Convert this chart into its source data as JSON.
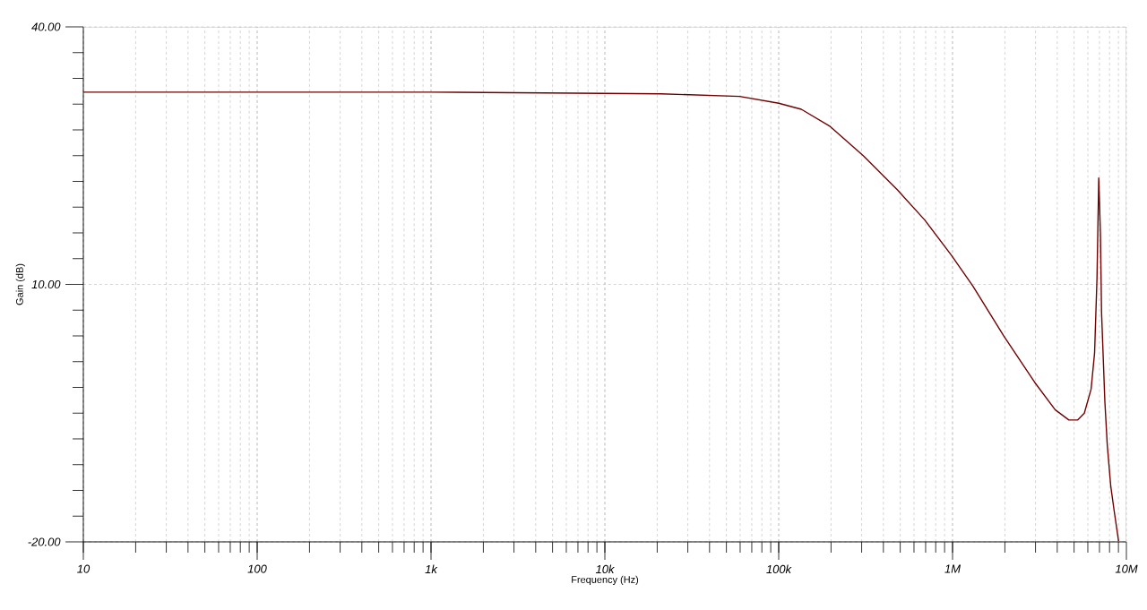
{
  "chart_data": {
    "type": "line",
    "xlabel": "Frequency (Hz)",
    "ylabel": "Gain (dB)",
    "log": "x",
    "grid": true,
    "xlim": [
      10,
      10000000
    ],
    "ylim": [
      -20,
      40
    ],
    "xticks": [
      {
        "value": 10,
        "label": "10"
      },
      {
        "value": 100,
        "label": "100"
      },
      {
        "value": 1000,
        "label": "1k"
      },
      {
        "value": 10000,
        "label": "10k"
      },
      {
        "value": 100000,
        "label": "100k"
      },
      {
        "value": 1000000,
        "label": "1M"
      },
      {
        "value": 10000000,
        "label": "10M"
      }
    ],
    "yticks": [
      {
        "value": -20,
        "label": "-20.00"
      },
      {
        "value": 10,
        "label": "10.00"
      },
      {
        "value": 40,
        "label": "40.00"
      }
    ],
    "series": [
      {
        "color": "#700000",
        "x": [
          10,
          1000,
          21000,
          59600,
          100000,
          134900,
          197700,
          306200,
          482000,
          692000,
          984000,
          1309000,
          1968000,
          2965000,
          3890000,
          4667000,
          5236000,
          5728000,
          6266000,
          6561000,
          6776000,
          6934000,
          7096000,
          7194000,
          7516000,
          7762000,
          8128000,
          8492000,
          9016000
        ],
        "values": [
          32.4,
          32.4,
          32.2,
          31.9,
          31.1,
          30.4,
          28.4,
          25.0,
          21.0,
          17.5,
          13.4,
          9.8,
          4.0,
          -1.4,
          -4.6,
          -5.8,
          -5.8,
          -5.0,
          -2.2,
          2.0,
          10.8,
          22.4,
          15.6,
          6.8,
          -3.6,
          -8.7,
          -13.5,
          -16.3,
          -19.9
        ]
      }
    ]
  }
}
